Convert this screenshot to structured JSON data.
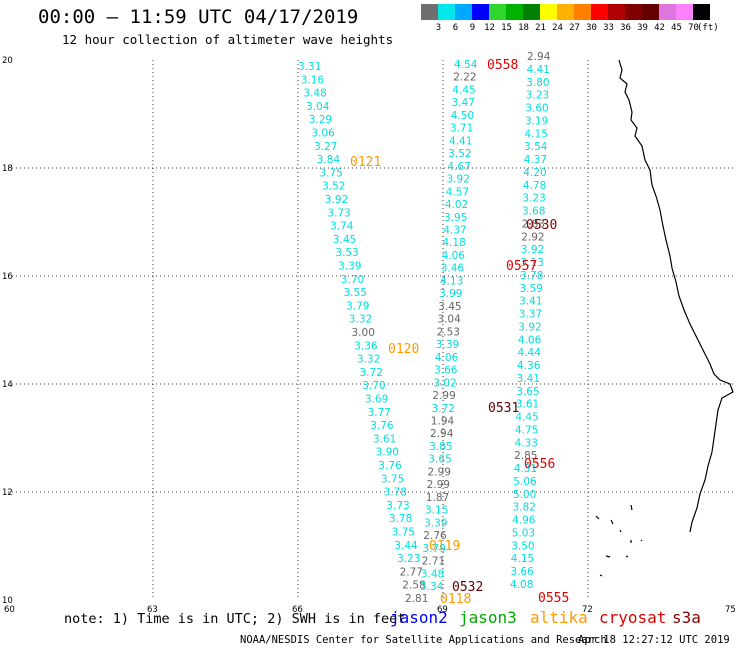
{
  "header": {
    "title": "00:00 – 11:59 UTC 04/17/2019",
    "subtitle": "12 hour collection of altimeter wave heights"
  },
  "color_scale": {
    "labels": [
      "3",
      "6",
      "9",
      "12",
      "15",
      "18",
      "21",
      "24",
      "27",
      "30",
      "33",
      "36",
      "39",
      "42",
      "45",
      "70",
      "(ft)"
    ],
    "colors": [
      "#6f6f6f",
      "#00e8e8",
      "#00a8ff",
      "#0000ff",
      "#2ed62e",
      "#00b200",
      "#008000",
      "#ffff00",
      "#ffb000",
      "#ff8000",
      "#ff0000",
      "#b00000",
      "#800000",
      "#660000",
      "#dd77dd",
      "#ff80ff",
      "#000000"
    ]
  },
  "map": {
    "x_ticks": [
      "60",
      "63",
      "66",
      "69",
      "72",
      "75"
    ],
    "y_ticks": [
      "10",
      "12",
      "14",
      "16",
      "18",
      "20"
    ],
    "x_range": [
      60,
      75
    ],
    "y_range": [
      10,
      20
    ]
  },
  "pass_times": [
    {
      "label": "0558",
      "color": "#e00000"
    },
    {
      "label": "0121",
      "color": "#ff9900"
    },
    {
      "label": "0530",
      "color": "#8b0000"
    },
    {
      "label": "0557",
      "color": "#e00000"
    },
    {
      "label": "0120",
      "color": "#ff9900"
    },
    {
      "label": "0531",
      "color": "#600000"
    },
    {
      "label": "0556",
      "color": "#e00000"
    },
    {
      "label": "0119",
      "color": "#ff9900"
    },
    {
      "label": "0532",
      "color": "#600000"
    },
    {
      "label": "0118",
      "color": "#ff9900"
    },
    {
      "label": "0555",
      "color": "#e00000"
    }
  ],
  "tracks": {
    "track_a": [
      "3.31",
      "3.16",
      "3.48",
      "3.04",
      "3.29",
      "3.06",
      "3.27",
      "3.84",
      "3.75",
      "3.52",
      "3.92",
      "3.73",
      "3.74",
      "3.45",
      "3.53",
      "3.39",
      "3.70",
      "3.55",
      "3.79",
      "3.32",
      "3.00",
      "3.36",
      "3.32",
      "3.72",
      "3.70",
      "3.69",
      "3.77",
      "3.76",
      "3.61",
      "3.90",
      "3.76",
      "3.75",
      "3.78",
      "3.73",
      "3.78",
      "3.75",
      "3.44",
      "3.23",
      "2.77",
      "2.58",
      "2.81"
    ],
    "track_b": [
      "4.54",
      "2.22",
      "4.45",
      "3.47",
      "4.50",
      "3.71",
      "4.41",
      "3.52",
      "4.67",
      "3.92",
      "4.57",
      "4.02",
      "3.95",
      "4.37",
      "4.18",
      "4.06",
      "3.46",
      "4.13",
      "3.99",
      "3.45",
      "3.04",
      "2.53",
      "3.39",
      "4.06",
      "3.66",
      "3.02",
      "2.99",
      "3.72",
      "1.94",
      "2.94",
      "3.85",
      "3.65",
      "2.99",
      "2.99",
      "1.87",
      "3.15",
      "3.39",
      "2.76",
      "3.79",
      "2.71",
      "3.48",
      "3.34"
    ],
    "track_c": [
      "2.94",
      "4.41",
      "3.80",
      "3.23",
      "3.60",
      "3.19",
      "4.15",
      "3.54",
      "4.37",
      "4.20",
      "4.78",
      "3.23",
      "3.68",
      "2.83",
      "2.92",
      "3.92",
      "3.13",
      "3.78",
      "3.59",
      "3.41",
      "3.37",
      "3.92",
      "4.06",
      "4.44",
      "4.36",
      "3.41",
      "3.65",
      "3.61",
      "4.45",
      "4.75",
      "4.33",
      "2.85",
      "4.31",
      "5.06",
      "5.00",
      "3.82",
      "4.96",
      "5.03",
      "3.50",
      "4.15",
      "3.66",
      "4.08"
    ]
  },
  "note": "note: 1) Time is in UTC; 2) SWH is in feet",
  "satellites": [
    {
      "name": "jason2",
      "color": "#0000ff"
    },
    {
      "name": "jason3",
      "color": "#00aa00"
    },
    {
      "name": "altika",
      "color": "#ff9900"
    },
    {
      "name": "cryosat",
      "color": "#e00000"
    },
    {
      "name": "s3a",
      "color": "#8b0000"
    }
  ],
  "footer": {
    "credit": "NOAA/NESDIS Center for Satellite Applications and Research",
    "timestamp": "Apr 18 12:27:12 UTC 2019"
  }
}
